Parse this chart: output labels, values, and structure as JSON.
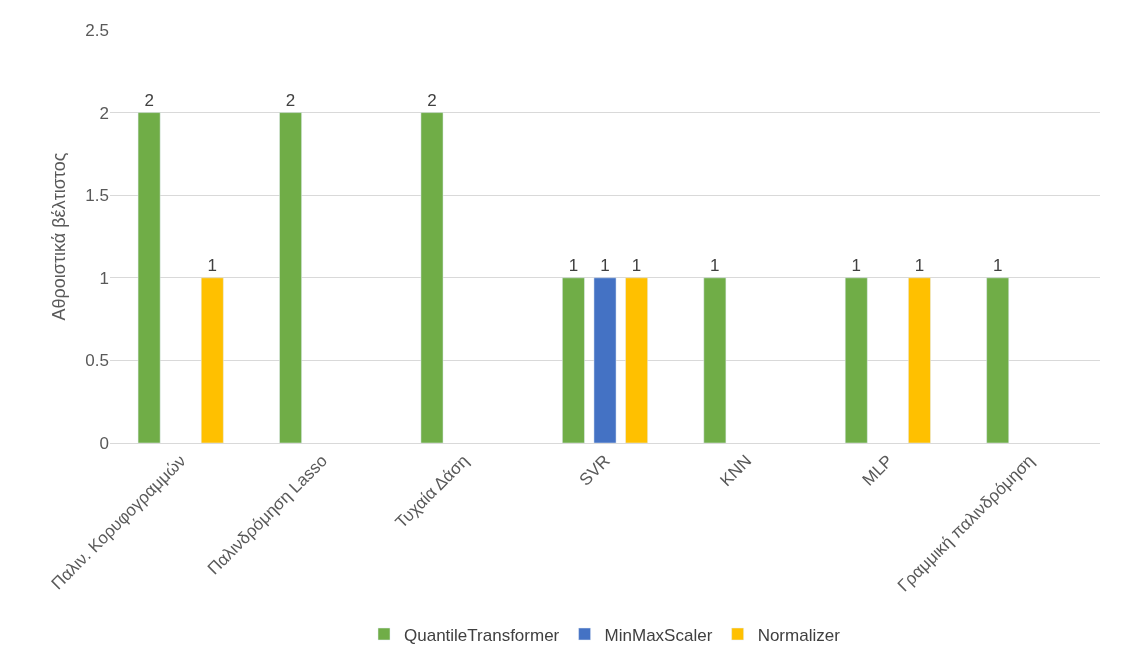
{
  "chart_data": {
    "type": "bar",
    "ylabel": "Αθροιστικά βέλτιστος",
    "categories": [
      "Παλιν. Κορυφογραμμών",
      "Παλινδρόμηση Lasso",
      "Τυχαία Δάση",
      "SVR",
      "KNN",
      "MLP",
      "Γραμμική παλινδρόμηση"
    ],
    "series": [
      {
        "name": "QuantileTransformer",
        "color": "#70ad47",
        "values": [
          2,
          2,
          2,
          1,
          1,
          1,
          1
        ]
      },
      {
        "name": "MinMaxScaler",
        "color": "#4472c4",
        "values": [
          null,
          null,
          null,
          1,
          null,
          null,
          null
        ]
      },
      {
        "name": "Normalizer",
        "color": "#ffc000",
        "values": [
          1,
          null,
          null,
          1,
          null,
          1,
          null
        ]
      }
    ],
    "ylim": [
      0,
      2.5
    ],
    "yticks": [
      0,
      0.5,
      1,
      1.5,
      2,
      2.5
    ],
    "grid": "y",
    "legend": "bottom",
    "data_labels": true
  }
}
